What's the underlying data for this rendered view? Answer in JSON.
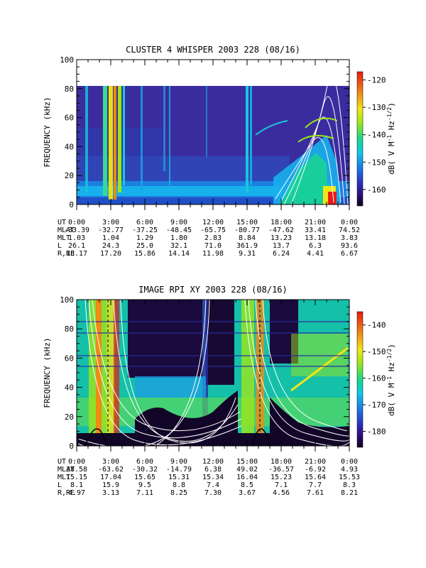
{
  "chart_data": [
    {
      "type": "heatmap",
      "title": "CLUSTER 4 WHISPER 2003 228 (08/16)",
      "ylabel": "FREQUENCY (kHz)",
      "ylim": [
        0,
        100
      ],
      "yticks": [
        "0",
        "20",
        "40",
        "60",
        "80",
        "100"
      ],
      "ytick_values": [
        0,
        20,
        40,
        60,
        80,
        100
      ],
      "data_top_khz": 80,
      "x_hours_range": [
        0,
        24
      ],
      "colorbar": {
        "label": "dB( V M",
        "label_sup1": "-1",
        "label_mid": " Hz",
        "label_sup2": "-1/2",
        "label_end": ")",
        "range": [
          -166,
          -117
        ],
        "ticks": [
          "-120",
          "-130",
          "-140",
          "-150",
          "-160"
        ],
        "tick_values": [
          -120,
          -130,
          -140,
          -150,
          -160
        ]
      },
      "ephemeris": {
        "rows": [
          {
            "label": "UT",
            "values": [
              "0:00",
              "3:00",
              "6:00",
              "9:00",
              "12:00",
              "15:00",
              "18:00",
              "21:00",
              "0:00"
            ]
          },
          {
            "label": "MLAT",
            "values": [
              "-33.39",
              "-32.77",
              "-37.25",
              "-48.45",
              "-65.75",
              "-80.77",
              "-47.62",
              "33.41",
              "74.52"
            ]
          },
          {
            "label": "MLT",
            "values": [
              "1.03",
              "1.04",
              "1.29",
              "1.80",
              "2.83",
              "8.84",
              "13.23",
              "13.18",
              "3.83"
            ]
          },
          {
            "label": "L",
            "values": [
              "26.1",
              "24.3",
              "25.0",
              "32.1",
              "71.0",
              "361.9",
              "13.7",
              "6.3",
              "93.6"
            ]
          },
          {
            "label": "R,RE",
            "values": [
              "18.17",
              "17.20",
              "15.86",
              "14.14",
              "11.98",
              "9.31",
              "6.24",
              "4.41",
              "6.67"
            ]
          }
        ]
      }
    },
    {
      "type": "heatmap",
      "title": "IMAGE RPI XY 2003 228 (08/16)",
      "ylabel": "FREQUENCY (kHz)",
      "ylim": [
        0,
        100
      ],
      "yticks": [
        "0",
        "20",
        "40",
        "60",
        "80",
        "100"
      ],
      "ytick_values": [
        0,
        20,
        40,
        60,
        80,
        100
      ],
      "data_top_khz": 100,
      "x_hours_range": [
        0,
        24
      ],
      "colorbar": {
        "label": "dB( V M",
        "label_sup1": "-1",
        "label_mid": " Hz",
        "label_sup2": "-1/2",
        "label_end": ")",
        "range": [
          -186,
          -135
        ],
        "ticks": [
          "-140",
          "-150",
          "-160",
          "-170",
          "-180"
        ],
        "tick_values": [
          -140,
          -150,
          -160,
          -170,
          -180
        ]
      },
      "ephemeris": {
        "rows": [
          {
            "label": "UT",
            "values": [
              "0:00",
              "3:00",
              "6:00",
              "9:00",
              "12:00",
              "15:00",
              "18:00",
              "21:00",
              "0:00"
            ]
          },
          {
            "label": "MLAT",
            "values": [
              "38.58",
              "-63.62",
              "-30.32",
              "-14.79",
              "6.38",
              "49.02",
              "-36.57",
              "-6.92",
              "4.93"
            ]
          },
          {
            "label": "MLT",
            "values": [
              "15.15",
              "17.04",
              "15.65",
              "15.31",
              "15.34",
              "16.04",
              "15.23",
              "15.64",
              "15.53"
            ]
          },
          {
            "label": "L",
            "values": [
              "8.1",
              "15.9",
              "9.5",
              "8.8",
              "7.4",
              "8.5",
              "7.1",
              "7.7",
              "8.3"
            ]
          },
          {
            "label": "R,RE",
            "values": [
              "4.97",
              "3.13",
              "7.11",
              "8.25",
              "7.30",
              "3.67",
              "4.56",
              "7.61",
              "8.21"
            ]
          }
        ]
      }
    }
  ]
}
